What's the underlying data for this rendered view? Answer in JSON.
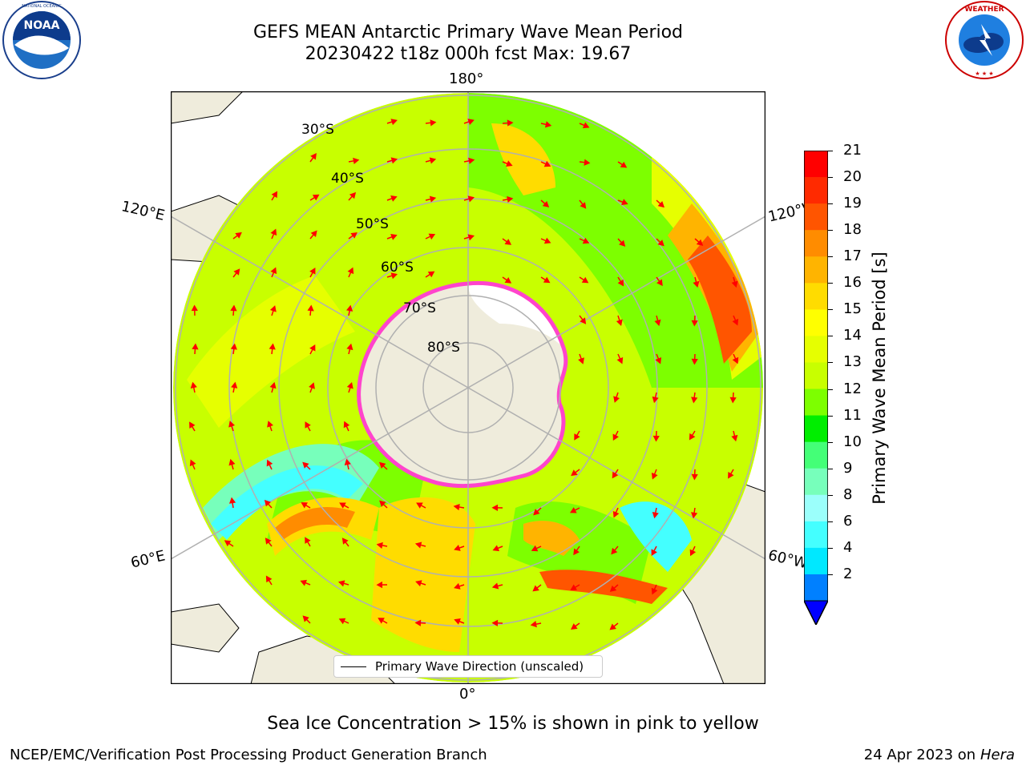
{
  "title": {
    "line1": "GEFS MEAN Antarctic Primary Wave Mean Period",
    "line2": "20230422 t18z 000h fcst   Max: 19.67"
  },
  "logos": {
    "left": {
      "icon": "noaa-logo-icon",
      "text": "NOAA",
      "ring_text": "NATIONAL OCEANIC AND ATMOSPHERIC ADMINISTRATION · U.S. DEPARTMENT OF COMMERCE"
    },
    "right": {
      "icon": "nws-logo-icon",
      "ring_text": "NATIONAL WEATHER SERVICE"
    }
  },
  "map": {
    "projection": "south polar stereographic",
    "longitude_labels": [
      "180°",
      "120°E",
      "120°W",
      "60°E",
      "60°W",
      "0°"
    ],
    "latitude_labels": [
      "30°S",
      "40°S",
      "50°S",
      "60°S",
      "70°S",
      "80°S"
    ],
    "legend": {
      "label": "Primary Wave Direction (unscaled)"
    },
    "arrow_color": "#ff0000",
    "sea_ice_color": "#ff44cc",
    "land_color": "#efecdc"
  },
  "colorbar": {
    "label": "Primary Wave Mean Period [s]",
    "ticks": [
      "21",
      "20",
      "19",
      "18",
      "17",
      "16",
      "15",
      "14",
      "13",
      "12",
      "11",
      "10",
      "9",
      "8",
      "6",
      "4",
      "2"
    ],
    "colors_top_to_bottom": [
      "#ff0000",
      "#ff2a00",
      "#ff5500",
      "#ff8c00",
      "#ffb400",
      "#ffdc00",
      "#ffff00",
      "#e6ff00",
      "#c8ff00",
      "#7dff00",
      "#00ee00",
      "#44ff77",
      "#77ffbb",
      "#9bfffb",
      "#44ffff",
      "#00e8ff",
      "#0080ff"
    ],
    "extend_color": "#0000ff"
  },
  "note": "Sea Ice Concentration > 15% is shown in pink to yellow",
  "footer": {
    "left": "NCEP/EMC/Verification Post Processing Product Generation Branch",
    "right_prefix": "24 Apr 2023 on ",
    "right_italic": "Hera"
  }
}
